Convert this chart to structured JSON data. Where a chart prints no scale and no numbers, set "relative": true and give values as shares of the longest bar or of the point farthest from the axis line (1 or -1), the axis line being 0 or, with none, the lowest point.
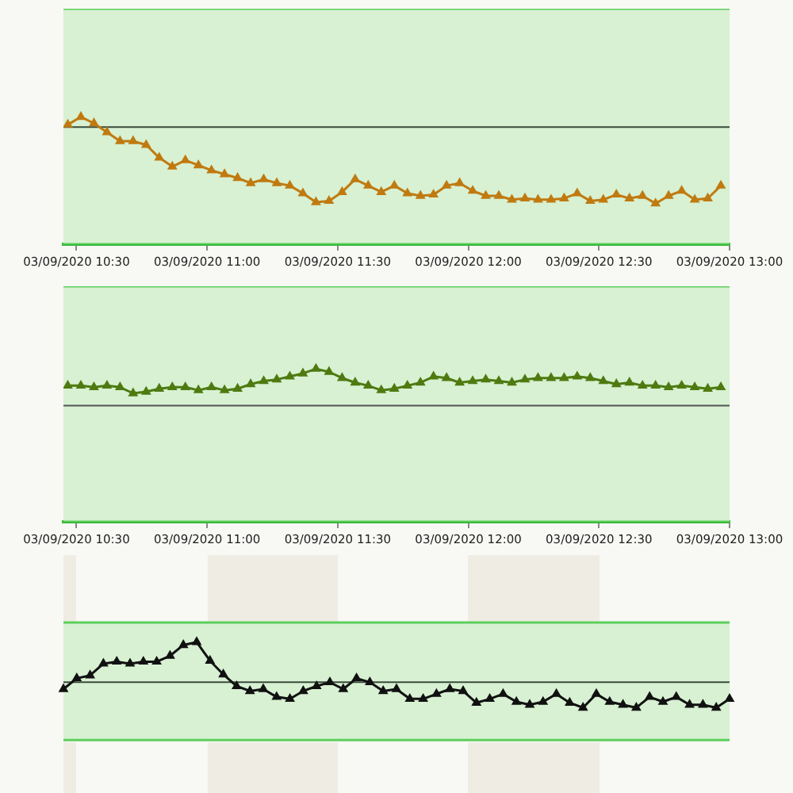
{
  "chart_data": [
    {
      "type": "line",
      "relative": true,
      "tick_labels": "x",
      "marker": "triangle",
      "xlim": [
        "2020-09-03T10:27",
        "2020-09-03T13:00"
      ],
      "x": [
        "2020-09-03T10:28",
        "2020-09-03T10:31",
        "2020-09-03T10:34",
        "2020-09-03T10:37",
        "2020-09-03T10:40",
        "2020-09-03T10:43",
        "2020-09-03T10:46",
        "2020-09-03T10:49",
        "2020-09-03T10:52",
        "2020-09-03T10:55",
        "2020-09-03T10:58",
        "2020-09-03T11:01",
        "2020-09-03T11:04",
        "2020-09-03T11:07",
        "2020-09-03T11:10",
        "2020-09-03T11:13",
        "2020-09-03T11:16",
        "2020-09-03T11:19",
        "2020-09-03T11:22",
        "2020-09-03T11:25",
        "2020-09-03T11:28",
        "2020-09-03T11:31",
        "2020-09-03T11:34",
        "2020-09-03T11:37",
        "2020-09-03T11:40",
        "2020-09-03T11:43",
        "2020-09-03T11:46",
        "2020-09-03T11:49",
        "2020-09-03T11:52",
        "2020-09-03T11:55",
        "2020-09-03T11:58",
        "2020-09-03T12:01",
        "2020-09-03T12:04",
        "2020-09-03T12:07",
        "2020-09-03T12:10",
        "2020-09-03T12:13",
        "2020-09-03T12:16",
        "2020-09-03T12:19",
        "2020-09-03T12:22",
        "2020-09-03T12:25",
        "2020-09-03T12:28",
        "2020-09-03T12:31",
        "2020-09-03T12:34",
        "2020-09-03T12:37",
        "2020-09-03T12:40",
        "2020-09-03T12:43",
        "2020-09-03T12:46",
        "2020-09-03T12:49",
        "2020-09-03T12:52",
        "2020-09-03T12:55",
        "2020-09-03T12:58"
      ],
      "xticks": [
        {
          "value": "2020-09-03T10:30",
          "label": "03/09/2020 10:30"
        },
        {
          "value": "2020-09-03T11:00",
          "label": "03/09/2020 11:00"
        },
        {
          "value": "2020-09-03T11:30",
          "label": "03/09/2020 11:30"
        },
        {
          "value": "2020-09-03T12:00",
          "label": "03/09/2020 12:00"
        },
        {
          "value": "2020-09-03T12:30",
          "label": "03/09/2020 12:30"
        },
        {
          "value": "2020-09-03T13:00",
          "label": "03/09/2020 13:00"
        }
      ],
      "series": [
        {
          "color": "#c07a10",
          "values": [
            0.94,
            1.0,
            0.95,
            0.88,
            0.81,
            0.81,
            0.78,
            0.68,
            0.61,
            0.66,
            0.62,
            0.58,
            0.55,
            0.52,
            0.48,
            0.51,
            0.48,
            0.46,
            0.4,
            0.33,
            0.34,
            0.41,
            0.51,
            0.46,
            0.41,
            0.46,
            0.4,
            0.38,
            0.39,
            0.46,
            0.48,
            0.42,
            0.38,
            0.38,
            0.35,
            0.36,
            0.35,
            0.35,
            0.36,
            0.4,
            0.34,
            0.35,
            0.39,
            0.36,
            0.38,
            0.32,
            0.38,
            0.42,
            0.35,
            0.36,
            0.46
          ]
        }
      ],
      "ref_lines": [
        {
          "axis": "y",
          "value": 0.92,
          "color": "#3a4a3a"
        }
      ],
      "bands": [
        {
          "axis": "y",
          "from": 0,
          "to": 1.85,
          "color": "#d7f1d2"
        }
      ]
    },
    {
      "type": "line",
      "relative": true,
      "tick_labels": "x",
      "marker": "triangle",
      "xlim": [
        "2020-09-03T10:27",
        "2020-09-03T13:00"
      ],
      "x": [
        "2020-09-03T10:28",
        "2020-09-03T10:31",
        "2020-09-03T10:34",
        "2020-09-03T10:37",
        "2020-09-03T10:40",
        "2020-09-03T10:43",
        "2020-09-03T10:46",
        "2020-09-03T10:49",
        "2020-09-03T10:52",
        "2020-09-03T10:55",
        "2020-09-03T10:58",
        "2020-09-03T11:01",
        "2020-09-03T11:04",
        "2020-09-03T11:07",
        "2020-09-03T11:10",
        "2020-09-03T11:13",
        "2020-09-03T11:16",
        "2020-09-03T11:19",
        "2020-09-03T11:22",
        "2020-09-03T11:25",
        "2020-09-03T11:28",
        "2020-09-03T11:31",
        "2020-09-03T11:34",
        "2020-09-03T11:37",
        "2020-09-03T11:40",
        "2020-09-03T11:43",
        "2020-09-03T11:46",
        "2020-09-03T11:49",
        "2020-09-03T11:52",
        "2020-09-03T11:55",
        "2020-09-03T11:58",
        "2020-09-03T12:01",
        "2020-09-03T12:04",
        "2020-09-03T12:07",
        "2020-09-03T12:10",
        "2020-09-03T12:13",
        "2020-09-03T12:16",
        "2020-09-03T12:19",
        "2020-09-03T12:22",
        "2020-09-03T12:25",
        "2020-09-03T12:28",
        "2020-09-03T12:31",
        "2020-09-03T12:34",
        "2020-09-03T12:37",
        "2020-09-03T12:40",
        "2020-09-03T12:43",
        "2020-09-03T12:46",
        "2020-09-03T12:49",
        "2020-09-03T12:52",
        "2020-09-03T12:55",
        "2020-09-03T12:58"
      ],
      "xticks": [
        {
          "value": "2020-09-03T10:30",
          "label": "03/09/2020 10:30"
        },
        {
          "value": "2020-09-03T11:00",
          "label": "03/09/2020 11:00"
        },
        {
          "value": "2020-09-03T11:30",
          "label": "03/09/2020 11:30"
        },
        {
          "value": "2020-09-03T12:00",
          "label": "03/09/2020 12:00"
        },
        {
          "value": "2020-09-03T12:30",
          "label": "03/09/2020 12:30"
        },
        {
          "value": "2020-09-03T13:00",
          "label": "03/09/2020 13:00"
        }
      ],
      "series": [
        {
          "color": "#4e7a10",
          "values": [
            0.89,
            0.89,
            0.88,
            0.89,
            0.88,
            0.84,
            0.85,
            0.87,
            0.88,
            0.88,
            0.86,
            0.88,
            0.86,
            0.87,
            0.9,
            0.92,
            0.93,
            0.95,
            0.97,
            1.0,
            0.98,
            0.94,
            0.91,
            0.89,
            0.86,
            0.87,
            0.89,
            0.91,
            0.95,
            0.94,
            0.91,
            0.92,
            0.93,
            0.92,
            0.91,
            0.93,
            0.94,
            0.94,
            0.94,
            0.95,
            0.94,
            0.92,
            0.9,
            0.91,
            0.89,
            0.89,
            0.88,
            0.89,
            0.88,
            0.87,
            0.88
          ]
        }
      ],
      "ref_lines": [
        {
          "axis": "y",
          "value": 0.76,
          "color": "#555555"
        }
      ],
      "bands": [
        {
          "axis": "y",
          "from": 0,
          "to": 1.54,
          "color": "#d7f1d2"
        }
      ]
    },
    {
      "type": "line",
      "relative": true,
      "tick_labels": false,
      "marker": "triangle",
      "categories": [
        null,
        null,
        null,
        null,
        null,
        null,
        null,
        null,
        null,
        null,
        null,
        null,
        null,
        null,
        null,
        null,
        null,
        null,
        null,
        null,
        null,
        null,
        null,
        null,
        null,
        null,
        null,
        null,
        null,
        null,
        null,
        null,
        null,
        null,
        null,
        null,
        null,
        null,
        null,
        null,
        null,
        null,
        null,
        null,
        null,
        null,
        null,
        null,
        null,
        null,
        null
      ],
      "series": [
        {
          "color": "#111111",
          "values": [
            0.52,
            0.63,
            0.66,
            0.78,
            0.8,
            0.78,
            0.8,
            0.8,
            0.86,
            0.97,
            1.0,
            0.81,
            0.67,
            0.55,
            0.5,
            0.52,
            0.44,
            0.42,
            0.5,
            0.55,
            0.59,
            0.52,
            0.63,
            0.59,
            0.5,
            0.52,
            0.42,
            0.42,
            0.47,
            0.52,
            0.5,
            0.38,
            0.42,
            0.47,
            0.39,
            0.36,
            0.39,
            0.47,
            0.38,
            0.33,
            0.47,
            0.39,
            0.36,
            0.33,
            0.44,
            0.39,
            0.44,
            0.36,
            0.36,
            0.33,
            0.42
          ]
        }
      ],
      "ref_lines": [
        {
          "axis": "y",
          "value": 0.59,
          "color": "#3a4a3a"
        }
      ],
      "bands": [
        {
          "axis": "y",
          "from": 0,
          "to": 1.2,
          "color": "#d7f1d2"
        }
      ]
    }
  ]
}
